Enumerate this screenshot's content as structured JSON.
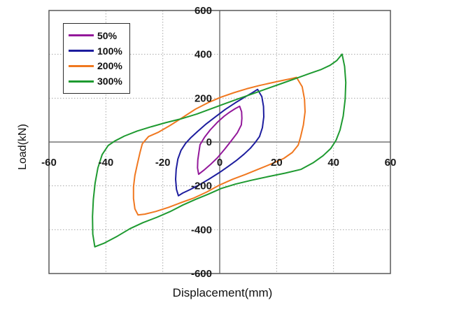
{
  "window": {
    "background": "#ffffff"
  },
  "chart_data": {
    "type": "line",
    "title": "",
    "xlabel": "Displacement(mm)",
    "ylabel": "Load(kN)",
    "xlim": [
      -60,
      60
    ],
    "ylim": [
      -600,
      600
    ],
    "xticks": [
      -60,
      -40,
      -20,
      0,
      20,
      40,
      60
    ],
    "yticks": [
      600,
      400,
      200,
      0,
      -200,
      -400,
      -600
    ],
    "grid_xticks": [
      -40,
      -20,
      20,
      40
    ],
    "grid_yticks": [
      -400,
      -200,
      200,
      400
    ],
    "grid_style": "dotted",
    "legend_position": "top-left",
    "colors": {
      "border": "#595959",
      "zero_axis": "#979797",
      "grid": "#a8a8a8",
      "text": "#1a1a1a"
    },
    "legend": [
      {
        "label": "50%",
        "color": "#93189A"
      },
      {
        "label": "100%",
        "color": "#1D1D9E"
      },
      {
        "label": "200%",
        "color": "#F07820"
      },
      {
        "label": "300%",
        "color": "#1E9A30"
      }
    ],
    "series": [
      {
        "name": "50%",
        "color": "#93189A",
        "closed": true,
        "points": [
          [
            7,
            163
          ],
          [
            7.7,
            138
          ],
          [
            7.8,
            108
          ],
          [
            7.6,
            78
          ],
          [
            6.2,
            42
          ],
          [
            4.2,
            8
          ],
          [
            1.8,
            -32
          ],
          [
            -0.8,
            -72
          ],
          [
            -3.3,
            -103
          ],
          [
            -5.5,
            -128
          ],
          [
            -7.4,
            -147
          ],
          [
            -7.8,
            -118
          ],
          [
            -7.7,
            -82
          ],
          [
            -7.3,
            -46
          ],
          [
            -6.9,
            -12
          ],
          [
            -5.3,
            22
          ],
          [
            -3.3,
            56
          ],
          [
            -0.8,
            90
          ],
          [
            1.6,
            118
          ],
          [
            3.6,
            137
          ],
          [
            5.4,
            152
          ],
          [
            7,
            163
          ]
        ]
      },
      {
        "name": "100%",
        "color": "#1D1D9E",
        "closed": true,
        "points": [
          [
            13.3,
            240
          ],
          [
            14.8,
            207
          ],
          [
            15.4,
            162
          ],
          [
            15.5,
            115
          ],
          [
            15,
            65
          ],
          [
            14,
            25
          ],
          [
            12.5,
            -2
          ],
          [
            10.8,
            -28
          ],
          [
            8.6,
            -55
          ],
          [
            5.8,
            -85
          ],
          [
            2.8,
            -113
          ],
          [
            -0.2,
            -140
          ],
          [
            -3.6,
            -168
          ],
          [
            -7,
            -194
          ],
          [
            -10.4,
            -217
          ],
          [
            -13,
            -233
          ],
          [
            -14.5,
            -245
          ],
          [
            -15.2,
            -216
          ],
          [
            -15.5,
            -170
          ],
          [
            -15.3,
            -124
          ],
          [
            -14.7,
            -78
          ],
          [
            -13.6,
            -38
          ],
          [
            -12,
            -6
          ],
          [
            -10.3,
            18
          ],
          [
            -7.8,
            48
          ],
          [
            -4.8,
            82
          ],
          [
            -1.4,
            116
          ],
          [
            2,
            149
          ],
          [
            5.5,
            179
          ],
          [
            8.8,
            205
          ],
          [
            11.6,
            226
          ],
          [
            13.3,
            240
          ]
        ]
      },
      {
        "name": "200%",
        "color": "#F07820",
        "closed": true,
        "points": [
          [
            27,
            295
          ],
          [
            29,
            252
          ],
          [
            29.8,
            195
          ],
          [
            30,
            138
          ],
          [
            29.4,
            78
          ],
          [
            28.4,
            22
          ],
          [
            27.6,
            -14
          ],
          [
            25.5,
            -48
          ],
          [
            22.5,
            -75
          ],
          [
            18.5,
            -98
          ],
          [
            14,
            -122
          ],
          [
            9,
            -148
          ],
          [
            4.5,
            -170
          ],
          [
            0,
            -196
          ],
          [
            -4.5,
            -228
          ],
          [
            -9,
            -255
          ],
          [
            -13.5,
            -276
          ],
          [
            -18,
            -298
          ],
          [
            -22.5,
            -317
          ],
          [
            -26.3,
            -329
          ],
          [
            -28.7,
            -333
          ],
          [
            -29.8,
            -305
          ],
          [
            -30.3,
            -258
          ],
          [
            -30.3,
            -205
          ],
          [
            -29.8,
            -152
          ],
          [
            -28.9,
            -98
          ],
          [
            -28,
            -48
          ],
          [
            -27.2,
            -8
          ],
          [
            -25,
            25
          ],
          [
            -21.5,
            45
          ],
          [
            -17.5,
            75
          ],
          [
            -13,
            112
          ],
          [
            -8.5,
            150
          ],
          [
            -4,
            180
          ],
          [
            0.5,
            205
          ],
          [
            5,
            225
          ],
          [
            9.5,
            243
          ],
          [
            14,
            258
          ],
          [
            18.5,
            271
          ],
          [
            22.5,
            282
          ],
          [
            25.5,
            290
          ],
          [
            27,
            295
          ]
        ]
      },
      {
        "name": "300%",
        "color": "#1E9A30",
        "closed": true,
        "points": [
          [
            43,
            401
          ],
          [
            43.9,
            345
          ],
          [
            44.3,
            272
          ],
          [
            44.1,
            195
          ],
          [
            43.4,
            118
          ],
          [
            42.3,
            55
          ],
          [
            40.9,
            8
          ],
          [
            39,
            -30
          ],
          [
            36.3,
            -63
          ],
          [
            32.8,
            -95
          ],
          [
            28.5,
            -125
          ],
          [
            23,
            -142
          ],
          [
            17,
            -158
          ],
          [
            11,
            -175
          ],
          [
            5.5,
            -192
          ],
          [
            0.5,
            -212
          ],
          [
            -4,
            -238
          ],
          [
            -8.5,
            -262
          ],
          [
            -13,
            -288
          ],
          [
            -17.5,
            -318
          ],
          [
            -22,
            -343
          ],
          [
            -27,
            -368
          ],
          [
            -31.5,
            -395
          ],
          [
            -36,
            -430
          ],
          [
            -40.5,
            -461
          ],
          [
            -43.9,
            -478
          ],
          [
            -44.6,
            -420
          ],
          [
            -44.7,
            -340
          ],
          [
            -44.4,
            -262
          ],
          [
            -43.8,
            -188
          ],
          [
            -42.8,
            -118
          ],
          [
            -41.3,
            -57
          ],
          [
            -39.2,
            -16
          ],
          [
            -36.9,
            4
          ],
          [
            -33.5,
            27
          ],
          [
            -29,
            50
          ],
          [
            -24,
            70
          ],
          [
            -19,
            88
          ],
          [
            -13.5,
            106
          ],
          [
            -8,
            128
          ],
          [
            -3,
            152
          ],
          [
            2,
            176
          ],
          [
            7,
            199
          ],
          [
            12,
            222
          ],
          [
            17,
            245
          ],
          [
            22,
            268
          ],
          [
            27,
            291
          ],
          [
            31.5,
            312
          ],
          [
            35.5,
            330
          ],
          [
            38.8,
            350
          ],
          [
            41.2,
            372
          ],
          [
            43,
            401
          ]
        ]
      }
    ]
  }
}
